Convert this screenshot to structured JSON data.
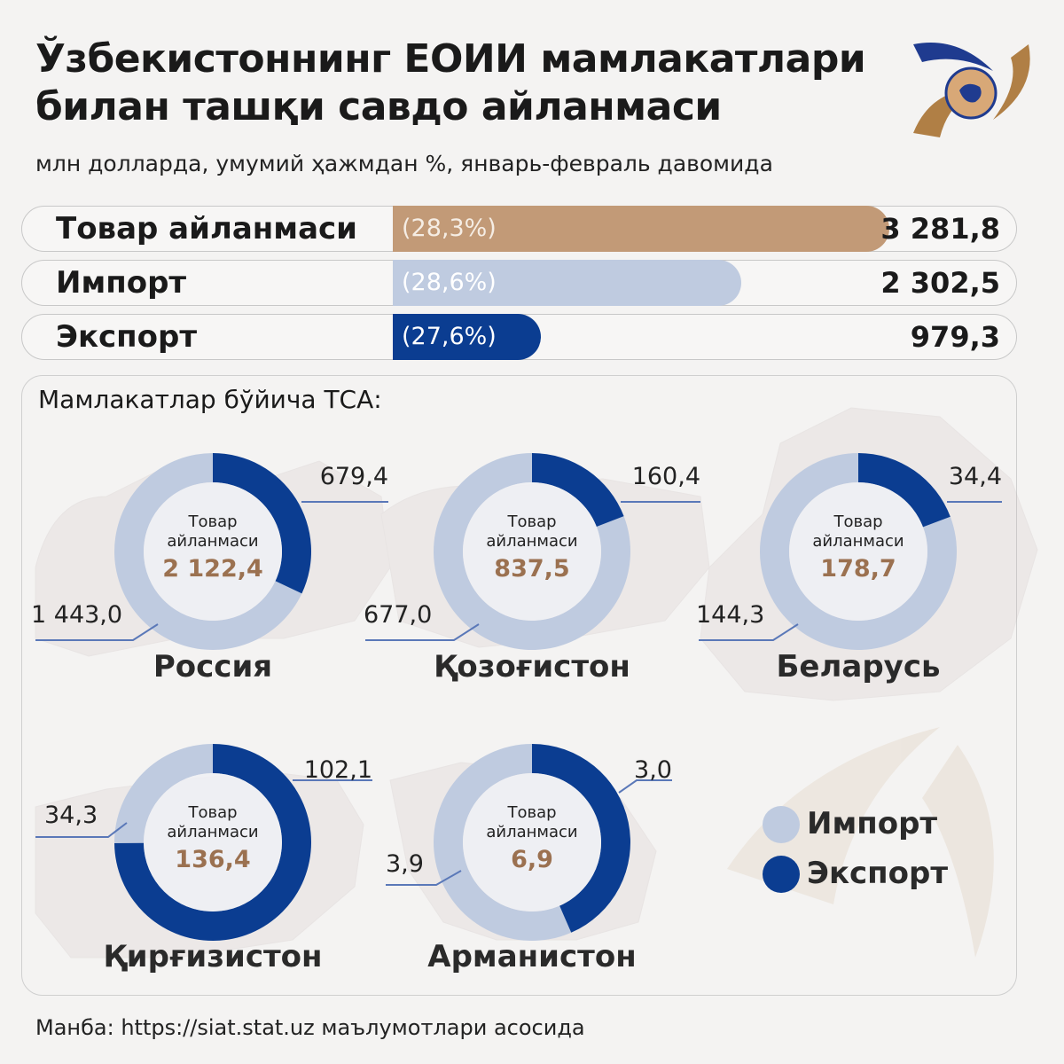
{
  "header": {
    "title_line1": "Ўзбекистоннинг ЕОИИ мамлакатлари",
    "title_line2": "билан ташқи савдо айланмаси",
    "subtitle": "млн долларда, умумий ҳажмдан %, январь-февраль давомида"
  },
  "colors": {
    "turnover": "#c29a77",
    "import": "#bfcbe0",
    "export": "#0b3d91",
    "value_text": "#9b7150"
  },
  "summary": [
    {
      "label": "Товар айланмаси",
      "pct": "(28,3%)",
      "value": "3 281,8",
      "fill_fraction": 0.77
    },
    {
      "label": "Импорт",
      "pct": "(28,6%)",
      "value": "2 302,5",
      "fill_fraction": 0.54
    },
    {
      "label": "Экспорт",
      "pct": "(27,6%)",
      "value": "979,3",
      "fill_fraction": 0.23
    }
  ],
  "panel": {
    "title": "Мамлакатлар бўйича ТСА:"
  },
  "chart_data": [
    {
      "type": "pie",
      "country": "Россия",
      "center_label_1": "Товар",
      "center_label_2": "айланмаси",
      "total": "2 122,4",
      "import": 1443.0,
      "export": 679.4,
      "import_label": "1 443,0",
      "export_label": "679,4"
    },
    {
      "type": "pie",
      "country": "Қозоғистон",
      "center_label_1": "Товар",
      "center_label_2": "айланмаси",
      "total": "837,5",
      "import": 677.0,
      "export": 160.4,
      "import_label": "677,0",
      "export_label": "160,4"
    },
    {
      "type": "pie",
      "country": "Беларусь",
      "center_label_1": "Товар",
      "center_label_2": "айланмаси",
      "total": "178,7",
      "import": 144.3,
      "export": 34.4,
      "import_label": "144,3",
      "export_label": "34,4"
    },
    {
      "type": "pie",
      "country": "Қирғизистон",
      "center_label_1": "Товар",
      "center_label_2": "айланмаси",
      "total": "136,4",
      "import": 34.3,
      "export": 102.1,
      "import_label": "34,3",
      "export_label": "102,1"
    },
    {
      "type": "pie",
      "country": "Арманистон",
      "center_label_1": "Товар",
      "center_label_2": "айланмаси",
      "total": "6,9",
      "import": 3.9,
      "export": 3.0,
      "import_label": "3,9",
      "export_label": "3,0"
    }
  ],
  "legend": {
    "import": "Импорт",
    "export": "Экспорт"
  },
  "source": "Манба: https://siat.stat.uz маълумотлари асосида"
}
